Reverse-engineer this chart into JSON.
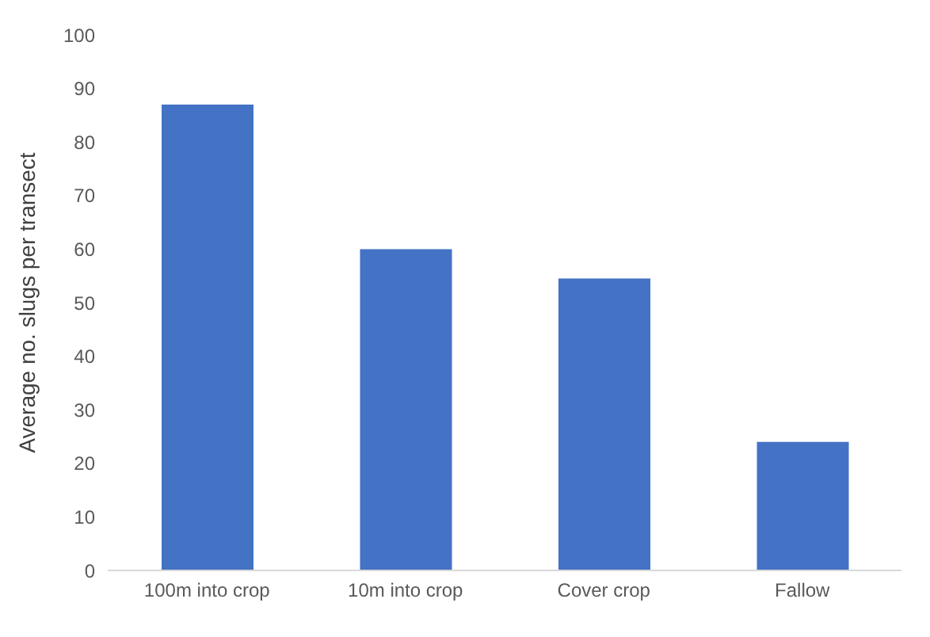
{
  "chart_data": {
    "type": "bar",
    "ylabel": "Average no. slugs per transect",
    "categories": [
      "100m into crop",
      "10m into crop",
      "Cover crop",
      "Fallow"
    ],
    "values": [
      87,
      60,
      54.5,
      24
    ],
    "color": "#4472c4",
    "ylim": [
      0,
      100
    ],
    "yticks": [
      0,
      10,
      20,
      30,
      40,
      50,
      60,
      70,
      80,
      90,
      100
    ],
    "grid": false
  }
}
